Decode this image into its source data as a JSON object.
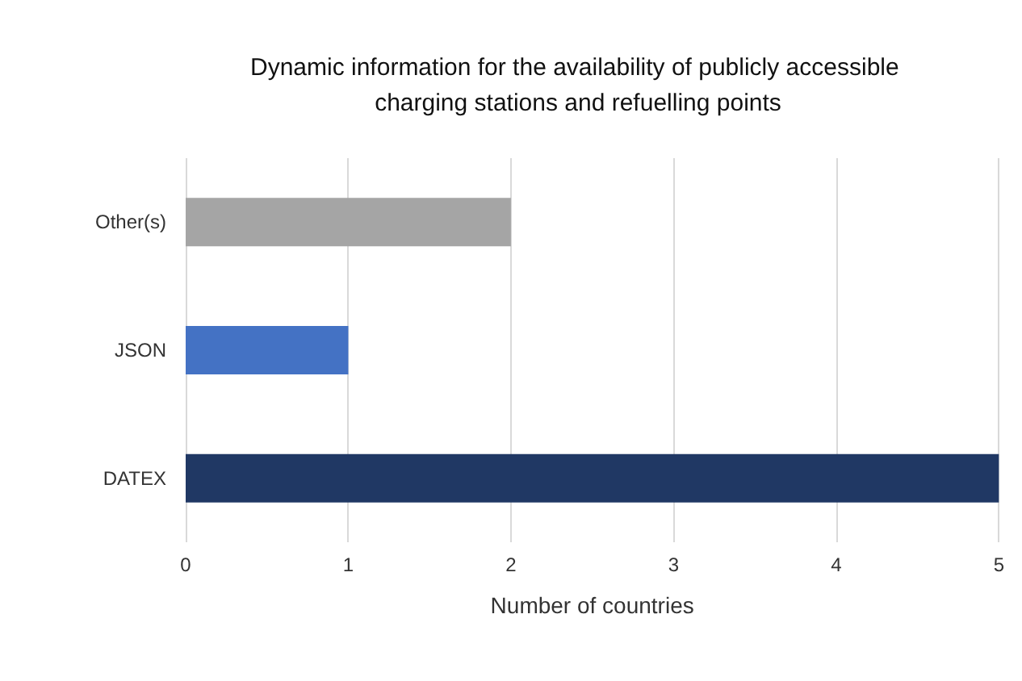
{
  "chart_data": {
    "type": "bar",
    "orientation": "horizontal",
    "title": "Dynamic information for the availability of publicly accessible charging stations and refuelling points",
    "categories": [
      "Other(s)",
      "JSON",
      "DATEX"
    ],
    "values": [
      2,
      1,
      5
    ],
    "colors": [
      "#a5a5a5",
      "#4472c4",
      "#203864"
    ],
    "xlabel": "Number of countries",
    "xlim": [
      0,
      5
    ],
    "xticks": [
      0,
      1,
      2,
      3,
      4,
      5
    ],
    "grid": "x"
  }
}
